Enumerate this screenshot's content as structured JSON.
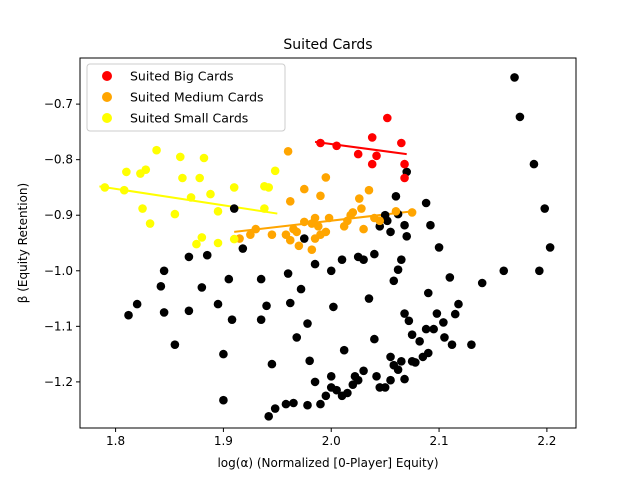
{
  "chart_data": {
    "type": "scatter",
    "title": "Suited Cards",
    "xlabel": "log(α) (Normalized [0-Player] Equity)",
    "ylabel": "β (Equity Retention)",
    "xlim": [
      1.767,
      2.227
    ],
    "ylim": [
      -1.283,
      -0.617
    ],
    "xticks": [
      1.8,
      1.9,
      2.0,
      2.1,
      2.2
    ],
    "xtick_labels": [
      "1.8",
      "1.9",
      "2.0",
      "2.1",
      "2.2"
    ],
    "yticks": [
      -1.2,
      -1.1,
      -1.0,
      -0.9,
      -0.8,
      -0.7
    ],
    "ytick_labels": [
      "−1.2",
      "−1.1",
      "−1.0",
      "−0.9",
      "−0.8",
      "−0.7"
    ],
    "grid": false,
    "legend_position": "top-left",
    "series": [
      {
        "name": "",
        "color": "#000000",
        "points": [
          [
            2.17,
            -0.652
          ],
          [
            2.175,
            -0.723
          ],
          [
            2.188,
            -0.808
          ],
          [
            2.198,
            -0.888
          ],
          [
            2.203,
            -0.958
          ],
          [
            2.193,
            -1.0
          ],
          [
            2.16,
            -1.0
          ],
          [
            2.14,
            -1.022
          ],
          [
            2.118,
            -1.06
          ],
          [
            2.115,
            -1.078
          ],
          [
            2.11,
            -1.012
          ],
          [
            2.1,
            -0.958
          ],
          [
            2.092,
            -0.918
          ],
          [
            2.088,
            -0.878
          ],
          [
            2.07,
            -0.822
          ],
          [
            2.06,
            -0.866
          ],
          [
            2.062,
            -0.898
          ],
          [
            2.068,
            -0.918
          ],
          [
            2.07,
            -0.938
          ],
          [
            2.065,
            -0.98
          ],
          [
            2.062,
            -0.998
          ],
          [
            2.058,
            -1.018
          ],
          [
            2.09,
            -1.04
          ],
          [
            2.098,
            -1.077
          ],
          [
            2.104,
            -1.093
          ],
          [
            2.105,
            -1.12
          ],
          [
            2.112,
            -1.133
          ],
          [
            2.13,
            -1.133
          ],
          [
            2.088,
            -1.105
          ],
          [
            2.095,
            -1.105
          ],
          [
            2.075,
            -1.115
          ],
          [
            2.082,
            -1.127
          ],
          [
            2.068,
            -1.077
          ],
          [
            2.072,
            -1.09
          ],
          [
            2.09,
            -1.148
          ],
          [
            2.085,
            -1.155
          ],
          [
            2.075,
            -1.163
          ],
          [
            2.065,
            -1.163
          ],
          [
            2.058,
            -1.17
          ],
          [
            2.055,
            -1.155
          ],
          [
            2.062,
            -1.178
          ],
          [
            2.078,
            -1.165
          ],
          [
            2.068,
            -1.195
          ],
          [
            2.055,
            -1.197
          ],
          [
            2.05,
            -1.21
          ],
          [
            2.045,
            -1.21
          ],
          [
            2.042,
            -1.19
          ],
          [
            2.04,
            -1.123
          ],
          [
            2.035,
            -1.05
          ],
          [
            2.03,
            -0.98
          ],
          [
            2.025,
            -0.975
          ],
          [
            2.04,
            -0.97
          ],
          [
            2.055,
            -0.93
          ],
          [
            2.05,
            -0.9
          ],
          [
            2.052,
            -0.91
          ],
          [
            2.045,
            -0.92
          ],
          [
            2.01,
            -0.98
          ],
          [
            2.0,
            -1.0
          ],
          [
            2.002,
            -1.065
          ],
          [
            2.012,
            -1.143
          ],
          [
            2.03,
            -1.18
          ],
          [
            2.022,
            -1.19
          ],
          [
            2.025,
            -1.197
          ],
          [
            2.02,
            -1.205
          ],
          [
            2.015,
            -1.22
          ],
          [
            2.01,
            -1.225
          ],
          [
            2.0,
            -1.19
          ],
          [
            2.0,
            -1.21
          ],
          [
            2.005,
            -1.215
          ],
          [
            1.995,
            -1.225
          ],
          [
            1.99,
            -1.24
          ],
          [
            1.985,
            -1.2
          ],
          [
            1.98,
            -1.162
          ],
          [
            1.978,
            -1.095
          ],
          [
            1.972,
            -1.033
          ],
          [
            1.985,
            -0.988
          ],
          [
            1.975,
            -0.942
          ],
          [
            1.96,
            -1.005
          ],
          [
            1.962,
            -1.058
          ],
          [
            1.968,
            -1.12
          ],
          [
            1.978,
            -1.242
          ],
          [
            1.965,
            -1.238
          ],
          [
            1.958,
            -1.24
          ],
          [
            1.948,
            -1.248
          ],
          [
            1.942,
            -1.262
          ],
          [
            1.945,
            -1.168
          ],
          [
            1.935,
            -1.088
          ],
          [
            1.94,
            -1.063
          ],
          [
            1.935,
            -1.015
          ],
          [
            1.918,
            -0.96
          ],
          [
            1.91,
            -0.888
          ],
          [
            1.905,
            -1.015
          ],
          [
            1.9,
            -1.15
          ],
          [
            1.9,
            -1.233
          ],
          [
            1.908,
            -1.088
          ],
          [
            1.895,
            -1.06
          ],
          [
            1.88,
            -1.03
          ],
          [
            1.885,
            -0.972
          ],
          [
            1.868,
            -0.975
          ],
          [
            1.845,
            -1.0
          ],
          [
            1.842,
            -1.028
          ],
          [
            1.845,
            -1.075
          ],
          [
            1.868,
            -1.072
          ],
          [
            1.855,
            -1.133
          ],
          [
            1.82,
            -1.06
          ],
          [
            1.812,
            -1.08
          ]
        ]
      },
      {
        "name": "Suited Big Cards",
        "color": "#ff0000",
        "points": [
          [
            2.052,
            -0.725
          ],
          [
            2.038,
            -0.76
          ],
          [
            2.065,
            -0.77
          ],
          [
            1.99,
            -0.77
          ],
          [
            2.005,
            -0.775
          ],
          [
            2.025,
            -0.79
          ],
          [
            2.042,
            -0.793
          ],
          [
            2.038,
            -0.808
          ],
          [
            2.068,
            -0.808
          ],
          [
            2.068,
            -0.833
          ]
        ],
        "trend": [
          [
            1.985,
            -0.768
          ],
          [
            2.07,
            -0.79
          ]
        ]
      },
      {
        "name": "Suited Medium Cards",
        "color": "#ffa500",
        "points": [
          [
            1.96,
            -0.785
          ],
          [
            1.995,
            -0.832
          ],
          [
            1.975,
            -0.853
          ],
          [
            2.035,
            -0.855
          ],
          [
            1.99,
            -0.865
          ],
          [
            2.026,
            -0.87
          ],
          [
            1.962,
            -0.875
          ],
          [
            2.06,
            -0.893
          ],
          [
            2.075,
            -0.895
          ],
          [
            2.028,
            -0.888
          ],
          [
            2.02,
            -0.895
          ],
          [
            2.018,
            -0.9
          ],
          [
            2.015,
            -0.91
          ],
          [
            2.04,
            -0.905
          ],
          [
            2.045,
            -0.91
          ],
          [
            1.998,
            -0.905
          ],
          [
            1.985,
            -0.905
          ],
          [
            1.982,
            -0.915
          ],
          [
            1.988,
            -0.92
          ],
          [
            1.975,
            -0.912
          ],
          [
            1.965,
            -0.925
          ],
          [
            1.968,
            -0.93
          ],
          [
            1.958,
            -0.935
          ],
          [
            1.962,
            -0.945
          ],
          [
            1.97,
            -0.955
          ],
          [
            1.982,
            -0.962
          ],
          [
            1.985,
            -0.942
          ],
          [
            1.99,
            -0.935
          ],
          [
            1.995,
            -0.93
          ],
          [
            2.03,
            -0.925
          ],
          [
            2.012,
            -0.92
          ],
          [
            1.93,
            -0.925
          ],
          [
            1.945,
            -0.935
          ],
          [
            1.915,
            -0.942
          ],
          [
            1.925,
            -0.935
          ]
        ],
        "trend": [
          [
            1.91,
            -0.93
          ],
          [
            2.075,
            -0.893
          ]
        ]
      },
      {
        "name": "Suited Small Cards",
        "color": "#ffff00",
        "points": [
          [
            1.838,
            -0.783
          ],
          [
            1.86,
            -0.795
          ],
          [
            1.882,
            -0.797
          ],
          [
            1.81,
            -0.822
          ],
          [
            1.828,
            -0.818
          ],
          [
            1.823,
            -0.825
          ],
          [
            1.862,
            -0.833
          ],
          [
            1.878,
            -0.833
          ],
          [
            1.948,
            -0.82
          ],
          [
            1.79,
            -0.85
          ],
          [
            1.808,
            -0.855
          ],
          [
            1.87,
            -0.868
          ],
          [
            1.888,
            -0.862
          ],
          [
            1.938,
            -0.848
          ],
          [
            1.942,
            -0.85
          ],
          [
            1.91,
            -0.85
          ],
          [
            1.825,
            -0.888
          ],
          [
            1.855,
            -0.898
          ],
          [
            1.832,
            -0.915
          ],
          [
            1.895,
            -0.893
          ],
          [
            1.938,
            -0.888
          ],
          [
            1.91,
            -0.943
          ],
          [
            1.88,
            -0.94
          ],
          [
            1.875,
            -0.952
          ],
          [
            1.895,
            -0.95
          ]
        ],
        "trend": [
          [
            1.785,
            -0.848
          ],
          [
            1.95,
            -0.897
          ]
        ]
      }
    ]
  }
}
